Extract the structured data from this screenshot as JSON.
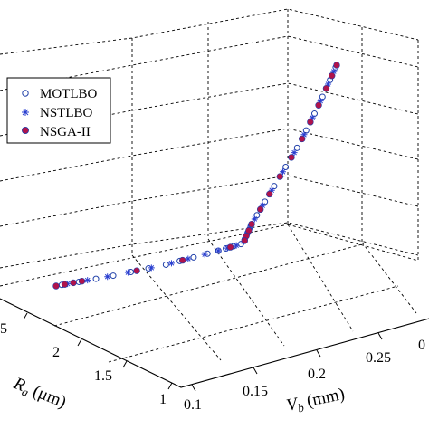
{
  "chart_data": {
    "type": "scatter",
    "projection": "3d",
    "grid": true,
    "legend_position": "top-left",
    "xlabel": {
      "symbol": "V",
      "subscript": "b",
      "unit": " (mm)"
    },
    "ylabel": {
      "symbol": "R",
      "subscript": "a",
      "unit": " (μm)"
    },
    "x_ticks": [
      "0.1",
      "0.15",
      "0.2",
      "0.25",
      "0"
    ],
    "y_ticks": [
      "1",
      "1.5",
      "2",
      "5"
    ],
    "series": [
      {
        "name": "MOTLBO",
        "marker": "open-circle",
        "color": "#1f3fa8",
        "points": [
          [
            0.13,
            2.68
          ],
          [
            0.135,
            2.62
          ],
          [
            0.14,
            2.56
          ],
          [
            0.145,
            2.5
          ],
          [
            0.15,
            2.44
          ],
          [
            0.155,
            2.38
          ],
          [
            0.16,
            2.32
          ],
          [
            0.165,
            2.27
          ],
          [
            0.17,
            2.22
          ],
          [
            0.175,
            2.17
          ],
          [
            0.18,
            2.12
          ],
          [
            0.185,
            2.07
          ],
          [
            0.19,
            2.02
          ],
          [
            0.195,
            1.97
          ],
          [
            0.2,
            1.92
          ],
          [
            0.205,
            1.86
          ],
          [
            0.21,
            1.8
          ],
          [
            0.214,
            1.73
          ],
          [
            0.218,
            1.66
          ],
          [
            0.222,
            1.58
          ],
          [
            0.226,
            1.5
          ],
          [
            0.23,
            1.42
          ],
          [
            0.234,
            1.34
          ],
          [
            0.238,
            1.26
          ],
          [
            0.242,
            1.18
          ],
          [
            0.246,
            1.1
          ],
          [
            0.249,
            1.04
          ]
        ]
      },
      {
        "name": "NSTLBO",
        "marker": "asterisk",
        "color": "#2a3fd0",
        "points": [
          [
            0.132,
            2.66
          ],
          [
            0.138,
            2.59
          ],
          [
            0.144,
            2.52
          ],
          [
            0.15,
            2.45
          ],
          [
            0.156,
            2.37
          ],
          [
            0.162,
            2.3
          ],
          [
            0.168,
            2.24
          ],
          [
            0.174,
            2.18
          ],
          [
            0.18,
            2.12
          ],
          [
            0.186,
            2.06
          ],
          [
            0.192,
            2.0
          ],
          [
            0.198,
            1.94
          ],
          [
            0.204,
            1.87
          ],
          [
            0.209,
            1.81
          ],
          [
            0.213,
            1.75
          ],
          [
            0.217,
            1.68
          ],
          [
            0.221,
            1.6
          ],
          [
            0.225,
            1.52
          ],
          [
            0.229,
            1.44
          ],
          [
            0.233,
            1.36
          ],
          [
            0.237,
            1.28
          ],
          [
            0.241,
            1.2
          ],
          [
            0.245,
            1.12
          ],
          [
            0.248,
            1.06
          ]
        ]
      },
      {
        "name": "NSGA-II",
        "marker": "filled-circle",
        "color": "#b0134b",
        "points": [
          [
            0.128,
            2.7
          ],
          [
            0.131,
            2.67
          ],
          [
            0.134,
            2.64
          ],
          [
            0.137,
            2.61
          ],
          [
            0.152,
            2.42
          ],
          [
            0.166,
            2.26
          ],
          [
            0.188,
            2.04
          ],
          [
            0.203,
            1.89
          ],
          [
            0.207,
            1.84
          ],
          [
            0.211,
            1.78
          ],
          [
            0.212,
            1.96
          ],
          [
            0.216,
            1.7
          ],
          [
            0.22,
            1.62
          ],
          [
            0.224,
            1.54
          ],
          [
            0.228,
            1.46
          ],
          [
            0.232,
            1.38
          ],
          [
            0.236,
            1.3
          ],
          [
            0.24,
            1.22
          ],
          [
            0.244,
            1.14
          ],
          [
            0.247,
            1.08
          ],
          [
            0.25,
            1.03
          ]
        ]
      }
    ]
  }
}
